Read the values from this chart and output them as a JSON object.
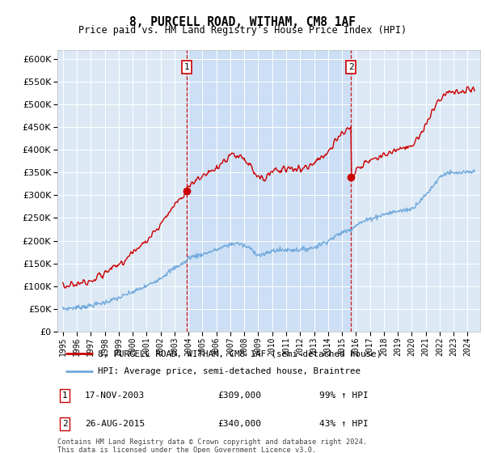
{
  "title": "8, PURCELL ROAD, WITHAM, CM8 1AF",
  "subtitle": "Price paid vs. HM Land Registry's House Price Index (HPI)",
  "property_label": "8, PURCELL ROAD, WITHAM, CM8 1AF (semi-detached house)",
  "hpi_label": "HPI: Average price, semi-detached house, Braintree",
  "annotation1_date": "17-NOV-2003",
  "annotation1_price": "£309,000",
  "annotation1_hpi": "99% ↑ HPI",
  "annotation2_date": "26-AUG-2015",
  "annotation2_price": "£340,000",
  "annotation2_hpi": "43% ↑ HPI",
  "footnote": "Contains HM Land Registry data © Crown copyright and database right 2024.\nThis data is licensed under the Open Government Licence v3.0.",
  "property_color": "#cc0000",
  "hpi_color": "#6fa8dc",
  "background_color": "#dce9f5",
  "highlight_color": "#ccdff5",
  "sale1_x": 2003.88,
  "sale1_y": 309000,
  "sale2_x": 2015.65,
  "sale2_y": 340000,
  "ylim": [
    0,
    620000
  ],
  "xlim_start": 1994.6,
  "xlim_end": 2024.9,
  "grid_color": "#ffffff",
  "vline_color": "#cc0000"
}
